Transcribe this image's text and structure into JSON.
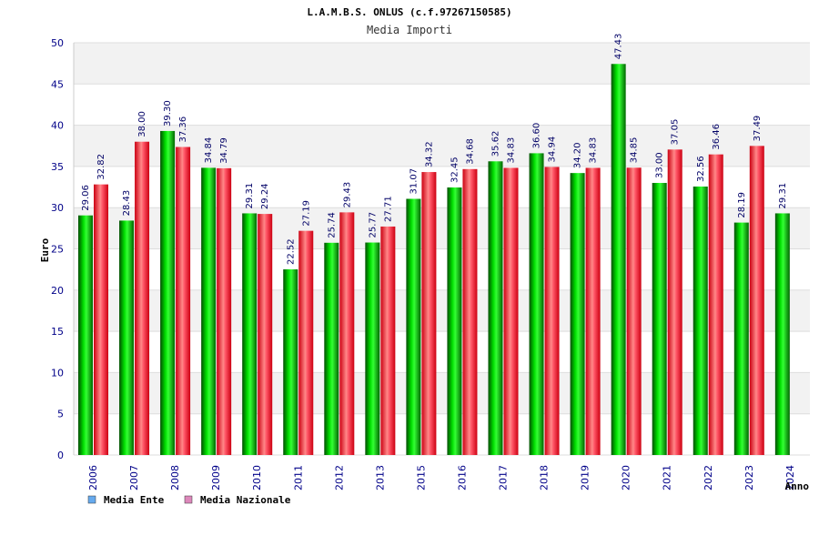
{
  "header": {
    "title": "L.A.M.B.S. ONLUS (c.f.97267150585)",
    "subtitle": "Media Importi"
  },
  "colors": {
    "ente": "#00cc00",
    "nazionale": "#ee2233",
    "legend_ente": "#66aaee",
    "legend_nazionale": "#dd88bb",
    "band": "#f2f2f2",
    "grid": "#dddddd"
  },
  "chart_data": {
    "type": "bar",
    "title": "L.A.M.B.S. ONLUS (c.f.97267150585)",
    "subtitle": "Media Importi",
    "xlabel": "Anno",
    "ylabel": "Euro",
    "ylim": [
      0,
      50
    ],
    "yticks": [
      0,
      5,
      10,
      15,
      20,
      25,
      30,
      35,
      40,
      45,
      50
    ],
    "categories": [
      "2006",
      "2007",
      "2008",
      "2009",
      "2010",
      "2011",
      "2012",
      "2013",
      "2015",
      "2016",
      "2017",
      "2018",
      "2019",
      "2020",
      "2021",
      "2022",
      "2023",
      "2024"
    ],
    "series": [
      {
        "name": "Media Ente",
        "values": [
          29.06,
          28.43,
          39.3,
          34.84,
          29.31,
          22.52,
          25.74,
          25.77,
          31.07,
          32.45,
          35.62,
          36.6,
          34.2,
          47.43,
          33.0,
          32.56,
          28.19,
          29.31
        ],
        "labels": [
          "29.06",
          "28.43",
          "39.30",
          "34.84",
          "29.31",
          "22.52",
          "25.74",
          "25.77",
          "31.07",
          "32.45",
          "35.62",
          "36.60",
          "34.20",
          "47.43",
          "33.00",
          "32.56",
          "28.19",
          "29.31"
        ]
      },
      {
        "name": "Media Nazionale",
        "values": [
          32.82,
          38.0,
          37.36,
          34.79,
          29.24,
          27.19,
          29.43,
          27.71,
          34.32,
          34.68,
          34.83,
          34.94,
          34.83,
          34.85,
          37.05,
          36.46,
          37.49,
          null
        ],
        "labels": [
          "32.82",
          "38.00",
          "37.36",
          "34.79",
          "29.24",
          "27.19",
          "29.43",
          "27.71",
          "34.32",
          "34.68",
          "34.83",
          "34.94",
          "34.83",
          "34.85",
          "37.05",
          "36.46",
          "37.49",
          null
        ]
      }
    ],
    "legend": [
      "Media Ente",
      "Media Nazionale"
    ],
    "legend_position": "bottom-left"
  }
}
